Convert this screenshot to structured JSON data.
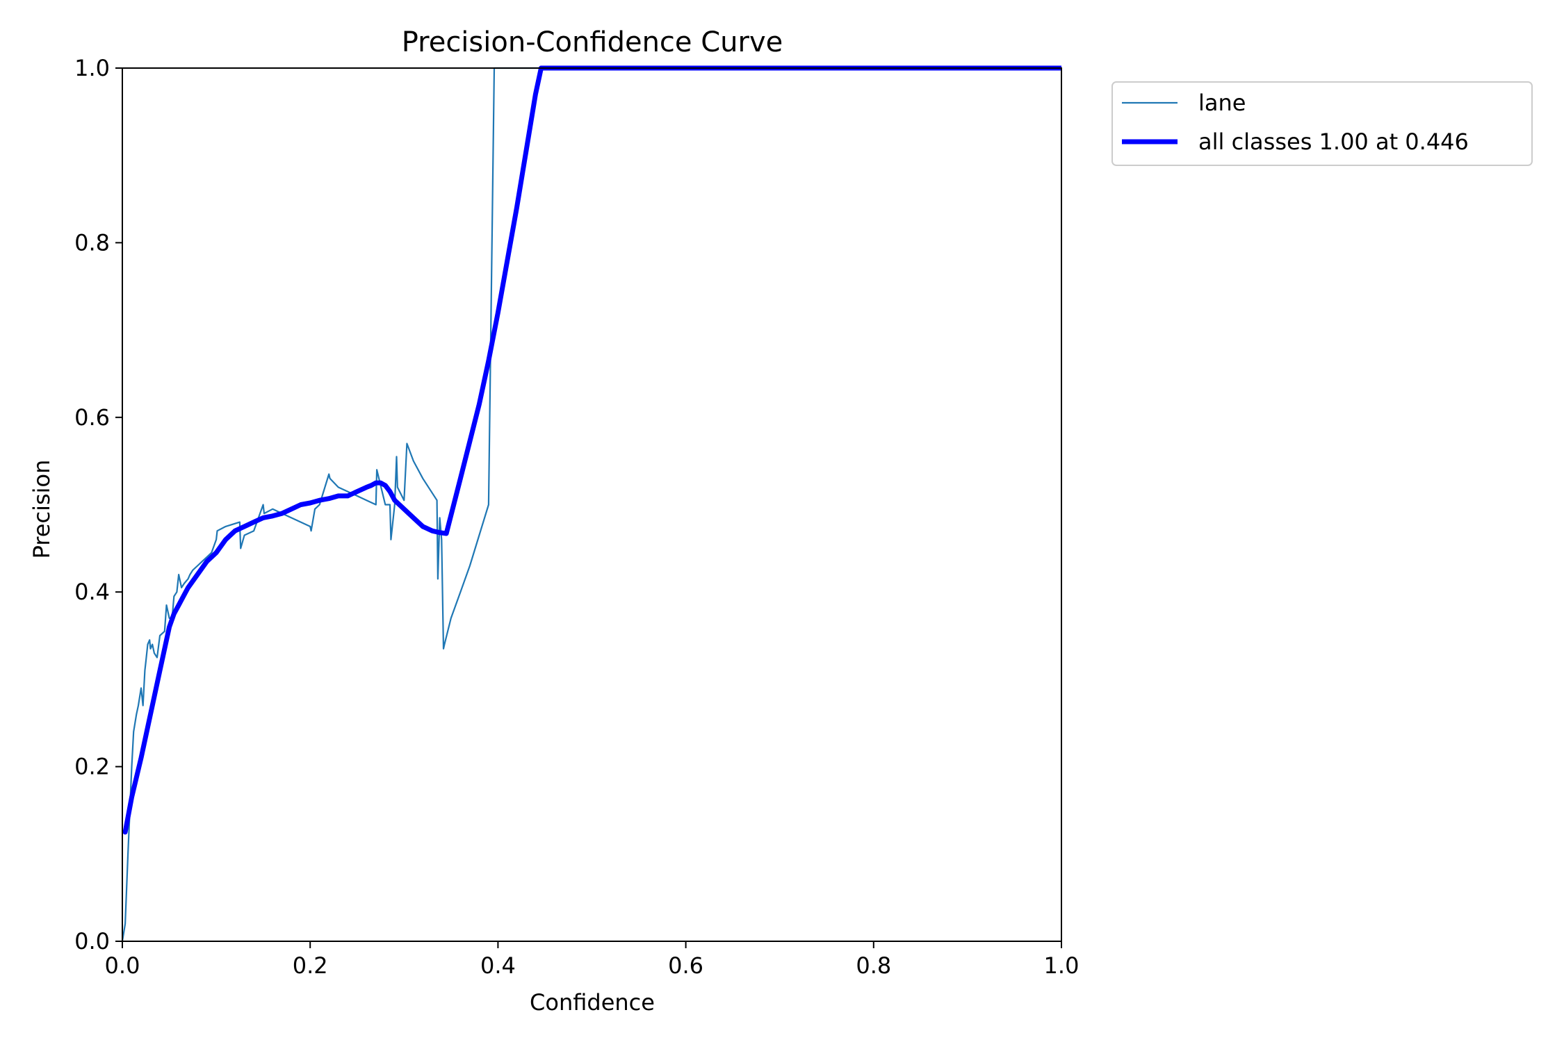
{
  "chart_data": {
    "type": "line",
    "title": "Precision-Confidence Curve",
    "xlabel": "Confidence",
    "ylabel": "Precision",
    "xlim": [
      0.0,
      1.0
    ],
    "ylim": [
      0.0,
      1.0
    ],
    "x_ticks": [
      "0.0",
      "0.2",
      "0.4",
      "0.6",
      "0.8",
      "1.0"
    ],
    "y_ticks": [
      "0.0",
      "0.2",
      "0.4",
      "0.6",
      "0.8",
      "1.0"
    ],
    "grid": false,
    "legend_position": "outside top-right",
    "series": [
      {
        "name": "lane",
        "color": "#1f77b4",
        "x": [
          0.0,
          0.003,
          0.006,
          0.008,
          0.01,
          0.012,
          0.015,
          0.017,
          0.02,
          0.022,
          0.024,
          0.025,
          0.027,
          0.029,
          0.03,
          0.032,
          0.034,
          0.037,
          0.04,
          0.045,
          0.047,
          0.05,
          0.053,
          0.055,
          0.058,
          0.06,
          0.063,
          0.066,
          0.07,
          0.072,
          0.075,
          0.08,
          0.085,
          0.09,
          0.095,
          0.1,
          0.101,
          0.11,
          0.125,
          0.126,
          0.13,
          0.14,
          0.15,
          0.151,
          0.16,
          0.17,
          0.18,
          0.19,
          0.2,
          0.201,
          0.205,
          0.21,
          0.22,
          0.221,
          0.23,
          0.24,
          0.25,
          0.26,
          0.27,
          0.271,
          0.28,
          0.285,
          0.286,
          0.29,
          0.292,
          0.293,
          0.3,
          0.303,
          0.31,
          0.32,
          0.335,
          0.336,
          0.338,
          0.34,
          0.342,
          0.343,
          0.35,
          0.36,
          0.37,
          0.38,
          0.39,
          0.396,
          0.397,
          0.4,
          0.45,
          0.5,
          0.6,
          0.7,
          0.8,
          0.9,
          1.0
        ],
        "values": [
          0.0,
          0.02,
          0.1,
          0.15,
          0.2,
          0.24,
          0.26,
          0.27,
          0.29,
          0.27,
          0.31,
          0.32,
          0.34,
          0.345,
          0.335,
          0.34,
          0.33,
          0.325,
          0.35,
          0.355,
          0.385,
          0.37,
          0.37,
          0.395,
          0.4,
          0.42,
          0.405,
          0.41,
          0.415,
          0.42,
          0.425,
          0.43,
          0.435,
          0.44,
          0.445,
          0.46,
          0.47,
          0.475,
          0.48,
          0.45,
          0.465,
          0.47,
          0.5,
          0.49,
          0.495,
          0.49,
          0.485,
          0.48,
          0.475,
          0.47,
          0.495,
          0.5,
          0.535,
          0.53,
          0.52,
          0.515,
          0.51,
          0.505,
          0.5,
          0.54,
          0.5,
          0.5,
          0.46,
          0.5,
          0.555,
          0.52,
          0.505,
          0.57,
          0.55,
          0.53,
          0.505,
          0.415,
          0.485,
          0.46,
          0.335,
          0.34,
          0.37,
          0.4,
          0.43,
          0.465,
          0.5,
          1.0,
          1.0,
          1.0,
          1.0,
          1.0,
          1.0,
          1.0,
          1.0,
          1.0,
          1.0
        ]
      },
      {
        "name": "all classes 1.00 at 0.446",
        "color": "#0000ff",
        "x": [
          0.003,
          0.01,
          0.02,
          0.03,
          0.04,
          0.05,
          0.055,
          0.06,
          0.065,
          0.07,
          0.08,
          0.09,
          0.1,
          0.11,
          0.12,
          0.13,
          0.14,
          0.15,
          0.16,
          0.17,
          0.18,
          0.19,
          0.2,
          0.21,
          0.22,
          0.23,
          0.24,
          0.25,
          0.26,
          0.265,
          0.27,
          0.275,
          0.28,
          0.285,
          0.29,
          0.3,
          0.31,
          0.32,
          0.33,
          0.338,
          0.345,
          0.36,
          0.38,
          0.39,
          0.4,
          0.42,
          0.44,
          0.446,
          0.5,
          0.6,
          0.7,
          0.8,
          0.9,
          1.0
        ],
        "values": [
          0.125,
          0.165,
          0.21,
          0.26,
          0.31,
          0.36,
          0.375,
          0.385,
          0.395,
          0.405,
          0.42,
          0.435,
          0.445,
          0.46,
          0.47,
          0.475,
          0.48,
          0.485,
          0.487,
          0.49,
          0.495,
          0.5,
          0.502,
          0.505,
          0.507,
          0.51,
          0.51,
          0.515,
          0.52,
          0.522,
          0.525,
          0.525,
          0.522,
          0.515,
          0.505,
          0.495,
          0.485,
          0.475,
          0.47,
          0.468,
          0.467,
          0.53,
          0.615,
          0.665,
          0.72,
          0.84,
          0.97,
          1.0,
          1.0,
          1.0,
          1.0,
          1.0,
          1.0,
          1.0
        ]
      }
    ]
  }
}
